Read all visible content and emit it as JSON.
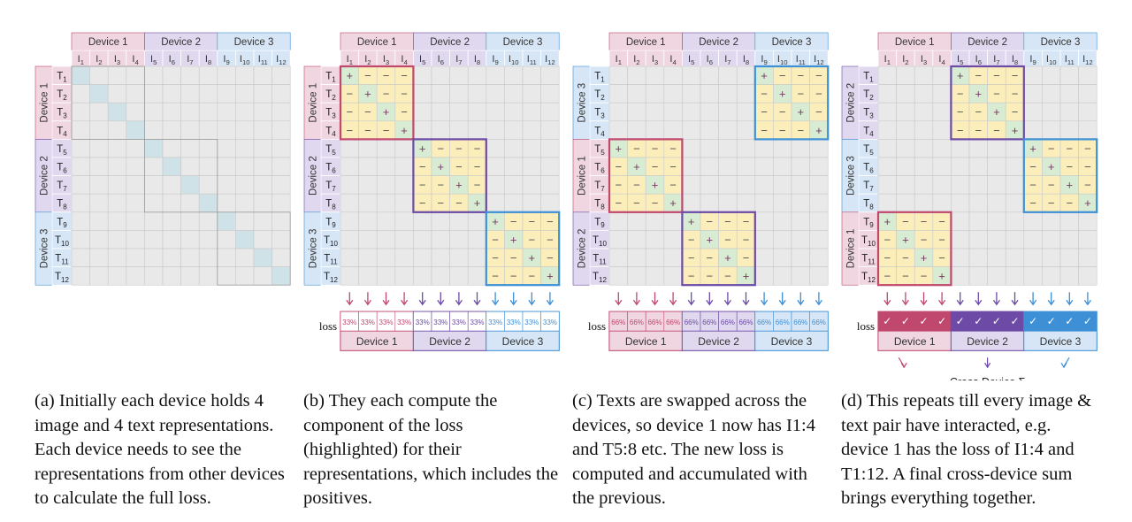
{
  "devices": [
    {
      "label": "Device 1",
      "color": "#c0476e",
      "fill": "#efd6e0"
    },
    {
      "label": "Device 2",
      "color": "#6c4aa6",
      "fill": "#e0d8ef"
    },
    {
      "label": "Device 3",
      "color": "#3d8fd6",
      "fill": "#d6e6f6"
    }
  ],
  "image_labels": [
    "I1",
    "I2",
    "I3",
    "I4",
    "I5",
    "I6",
    "I7",
    "I8",
    "I9",
    "I10",
    "I11",
    "I12"
  ],
  "text_labels": [
    "T1",
    "T2",
    "T3",
    "T4",
    "T5",
    "T6",
    "T7",
    "T8",
    "T9",
    "T10",
    "T11",
    "T12"
  ],
  "symbols": {
    "positive": "+",
    "negative": "−",
    "done": "✓"
  },
  "panels": [
    {
      "row_devices": [
        0,
        1,
        2
      ],
      "active_blocks": [],
      "loss": null
    },
    {
      "row_devices": [
        0,
        1,
        2
      ],
      "active_blocks": [
        [
          0,
          0
        ],
        [
          1,
          1
        ],
        [
          2,
          2
        ]
      ],
      "loss": {
        "label": "loss",
        "cell_text": "33%"
      }
    },
    {
      "row_devices": [
        2,
        0,
        1
      ],
      "active_blocks": [
        [
          0,
          2
        ],
        [
          1,
          0
        ],
        [
          2,
          1
        ]
      ],
      "loss": {
        "label": "loss",
        "cell_text": "66%"
      }
    },
    {
      "row_devices": [
        1,
        2,
        0
      ],
      "active_blocks": [
        [
          0,
          1
        ],
        [
          1,
          2
        ],
        [
          2,
          0
        ]
      ],
      "loss": {
        "label": "loss",
        "cell_text": "✓"
      },
      "footer": "Cross Device Σ"
    }
  ],
  "captions": [
    "(a) Initially each device holds 4 image and 4 text representations. Each device needs to see the representations from other devices to calculate the full loss.",
    "(b) They each compute the component of the loss (highlighted) for their representations, which includes the positives.",
    "(c) Texts are swapped across the devices, so device 1 now has I1:4 and T5:8 etc. The new loss is computed and accumulated with the previous.",
    "(d) This repeats till every image & text pair have interacted, e.g. device 1 has the loss of I1:4 and T1:12. A final cross-device sum brings everything together."
  ]
}
